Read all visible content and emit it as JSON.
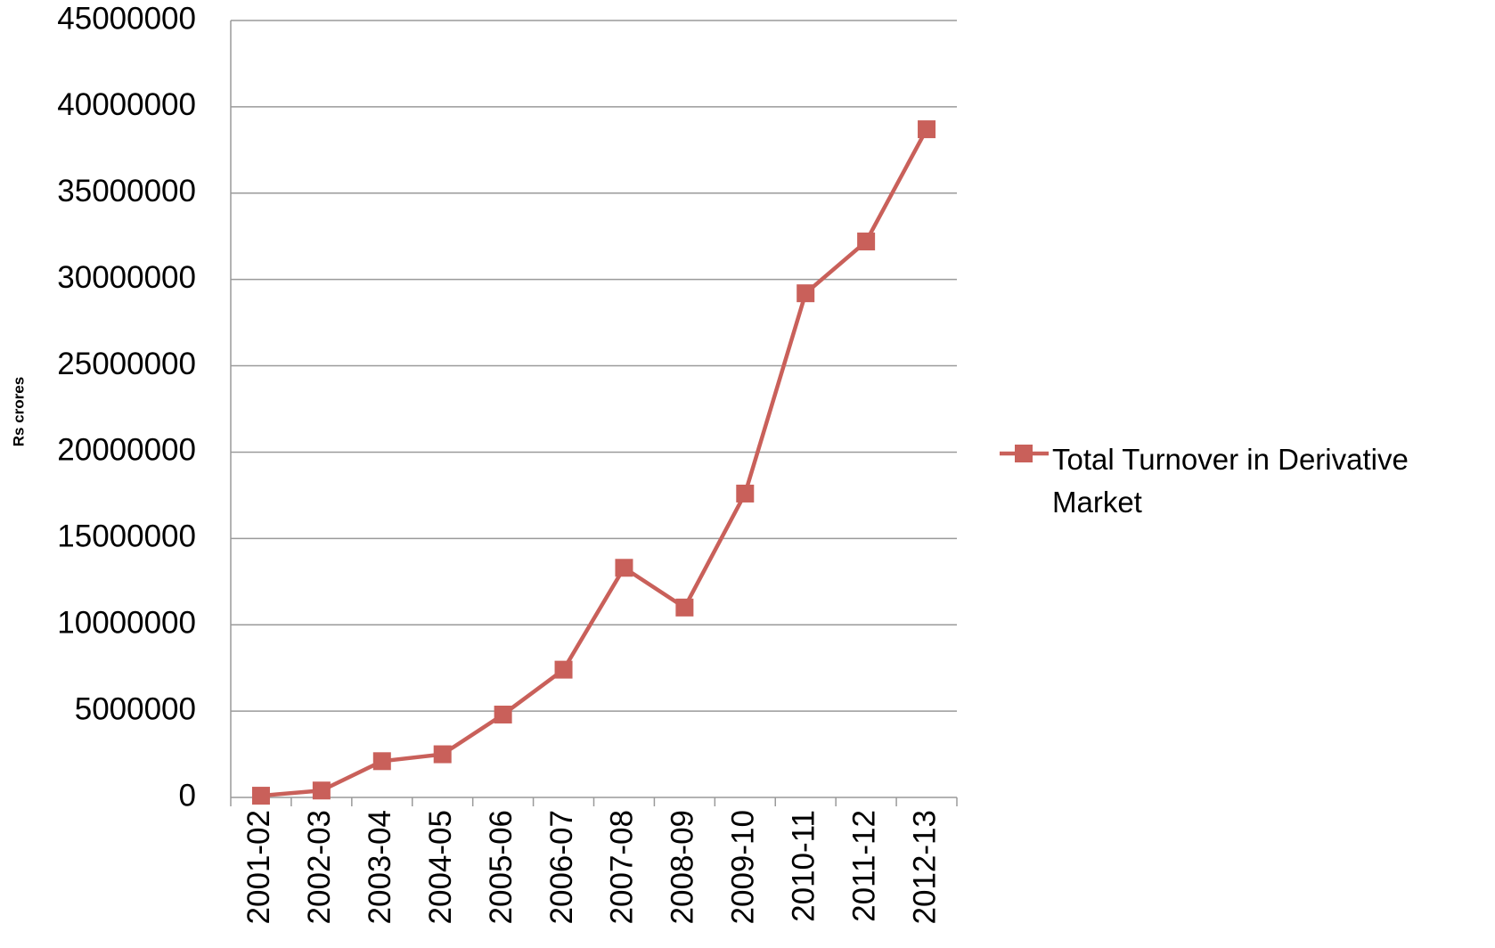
{
  "chart_data": {
    "type": "line",
    "y_label": "Rs crores",
    "categories": [
      "2001-02",
      "2002-03",
      "2003-04",
      "2004-05",
      "2005-06",
      "2006-07",
      "2007-08",
      "2008-09",
      "2009-10",
      "2010-11",
      "2011-12",
      "2012-13"
    ],
    "series": [
      {
        "name": "Total Turnover in Derivative Market",
        "color": "#c9605a",
        "values": [
          100000,
          400000,
          2100000,
          2500000,
          4800000,
          7400000,
          13300000,
          11000000,
          17600000,
          29200000,
          32200000,
          38700000
        ]
      }
    ],
    "ylim": [
      0,
      45000000
    ],
    "yticks": [
      0,
      5000000,
      10000000,
      15000000,
      20000000,
      25000000,
      30000000,
      35000000,
      40000000,
      45000000
    ],
    "grid": true,
    "legend": "right"
  }
}
